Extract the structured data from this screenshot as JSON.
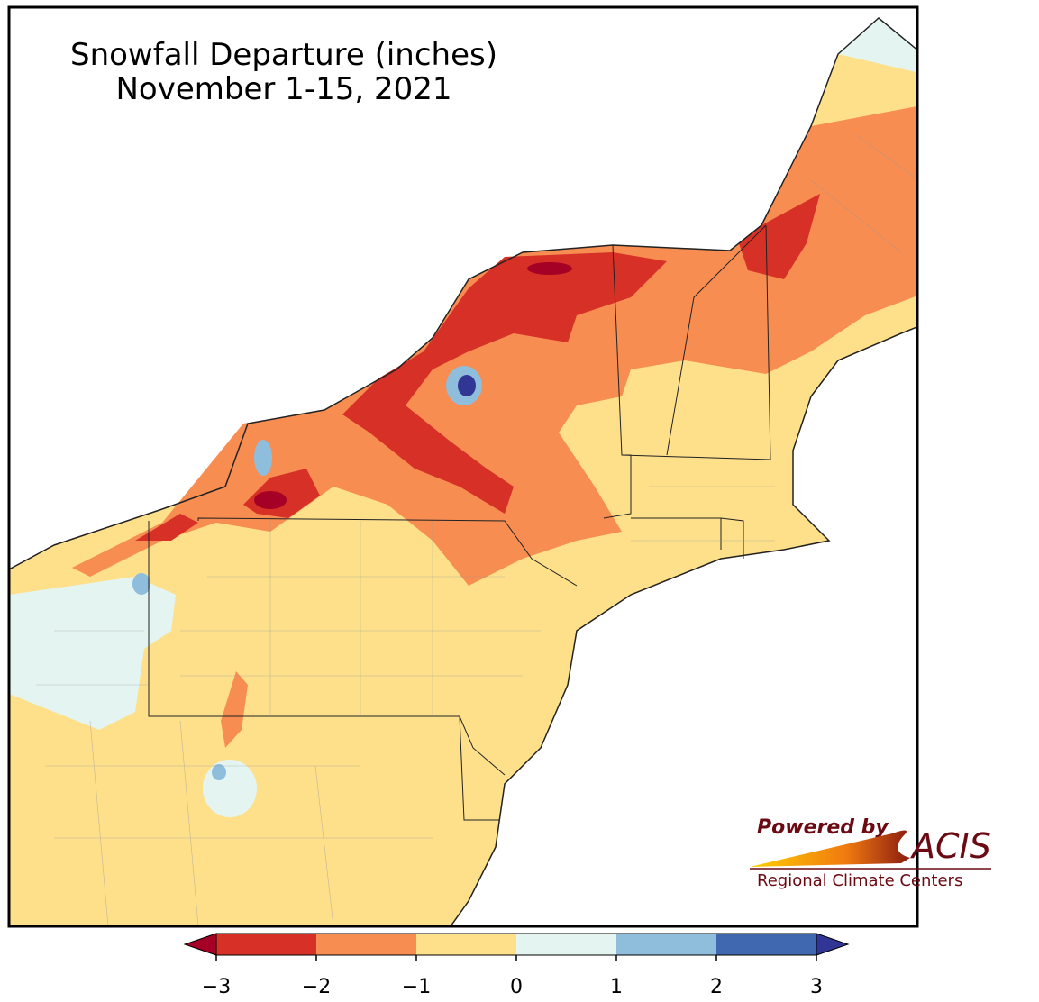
{
  "title": "Snowfall Departure (inches)",
  "subtitle": "November 1-15, 2021",
  "colorbar": {
    "ticks": [
      {
        "value": -3,
        "label": "−3"
      },
      {
        "value": -2,
        "label": "−2"
      },
      {
        "value": -1,
        "label": "−1"
      },
      0,
      1,
      2,
      3
    ],
    "colors": [
      "#d73027",
      "#f88d52",
      "#fee08b",
      "#e4f4f1",
      "#8fbddc",
      "#4068b0"
    ],
    "under_color": "#a50026",
    "over_color": "#313695"
  },
  "logo": {
    "powered_by": "Powered by",
    "name": "ACIS",
    "tagline": "Regional Climate Centers"
  }
}
